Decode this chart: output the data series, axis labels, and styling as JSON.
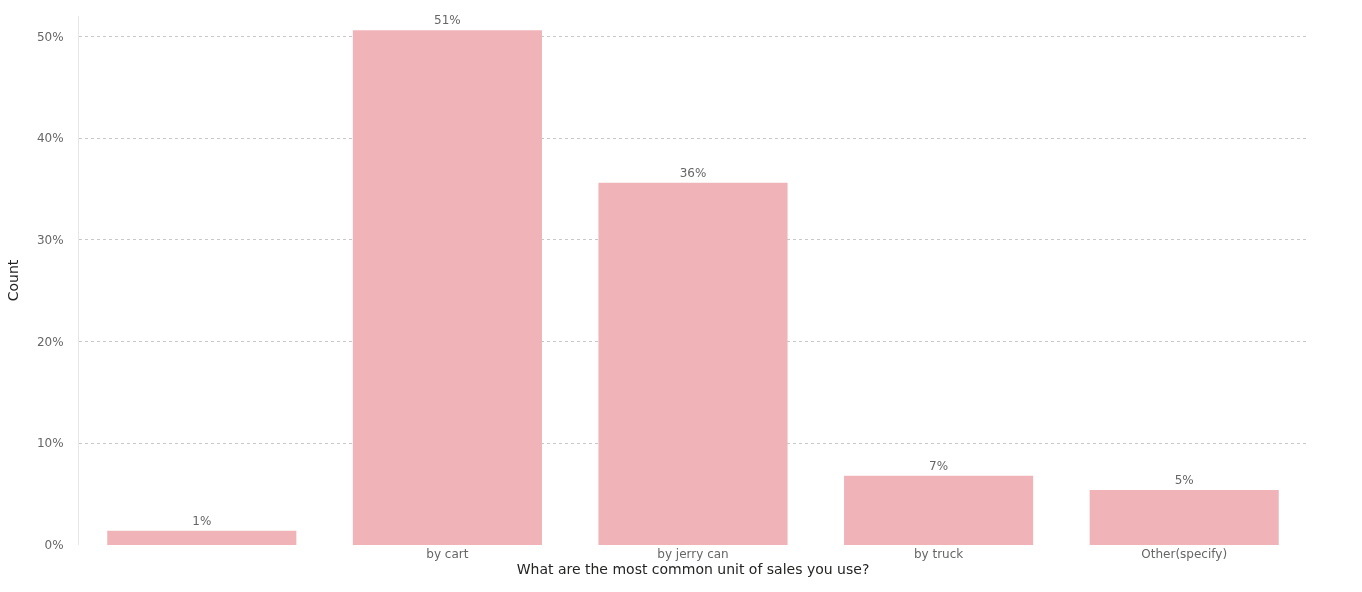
{
  "chart_data": {
    "type": "bar",
    "xlabel": "What are the most common unit of sales you use?",
    "ylabel": "Count",
    "categories": [
      null,
      "by cart",
      "by jerry can",
      "by truck",
      "Other(specify)"
    ],
    "values": [
      1.4,
      50.6,
      35.6,
      6.8,
      5.4
    ],
    "value_labels": [
      "1%",
      "51%",
      "36%",
      "7%",
      "5%"
    ],
    "color": "#f0b4b8",
    "ylim": [
      0,
      52
    ],
    "yticks": [
      {
        "value": 0,
        "label": "0%"
      },
      {
        "value": 10,
        "label": "10%"
      },
      {
        "value": 20,
        "label": "20%"
      },
      {
        "value": 30,
        "label": "30%"
      },
      {
        "value": 40,
        "label": "40%"
      },
      {
        "value": 50,
        "label": "50%"
      }
    ],
    "grid": "y",
    "legend": false
  }
}
